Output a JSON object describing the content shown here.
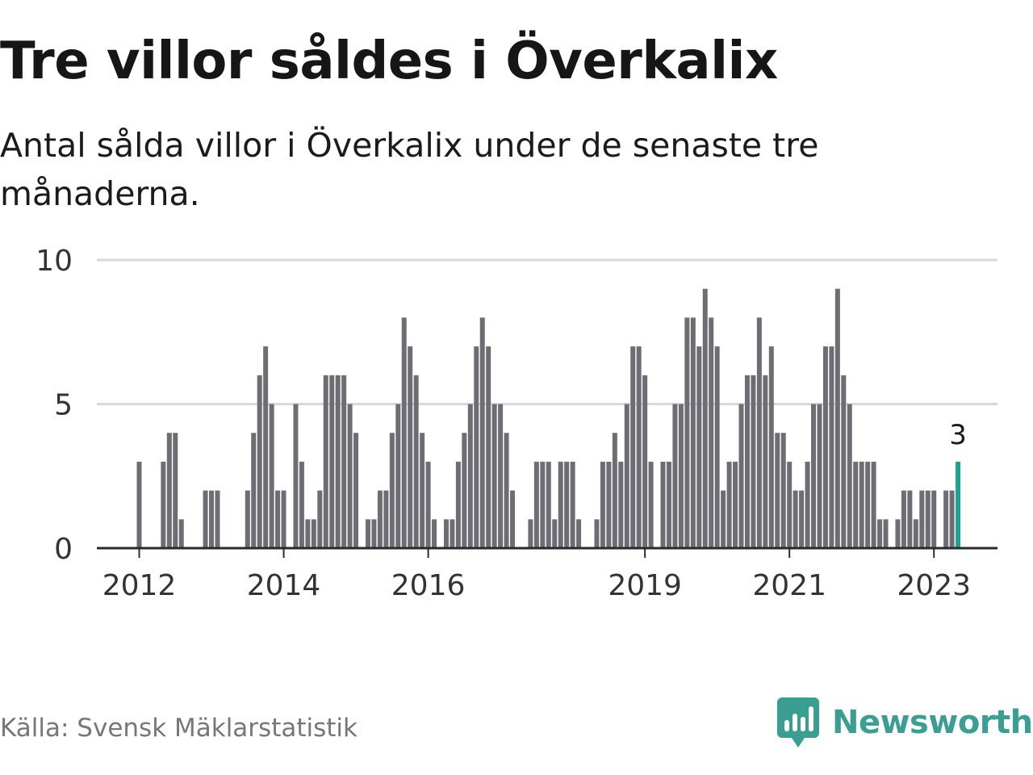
{
  "title": "Tre villor såldes i Överkalix",
  "subtitle": "Antal sålda villor i Överkalix under de senaste tre månaderna.",
  "source": "Källa: Svensk Mäklarstatistik",
  "brand": {
    "name": "Newsworthy",
    "icon": "newsworthy-logo-icon",
    "color": "#3a9e93"
  },
  "chart_data": {
    "type": "bar",
    "title": "Tre villor såldes i Överkalix",
    "subtitle": "Antal sålda villor i Överkalix under de senaste tre månaderna.",
    "xlabel": "",
    "ylabel": "",
    "ylim": [
      0,
      10
    ],
    "yticks": [
      0,
      5,
      10
    ],
    "grid": true,
    "x_start": "2012-01",
    "xticks": [
      {
        "label": "2012",
        "index": 0
      },
      {
        "label": "2014",
        "index": 24
      },
      {
        "label": "2016",
        "index": 48
      },
      {
        "label": "2019",
        "index": 84
      },
      {
        "label": "2021",
        "index": 108
      },
      {
        "label": "2023",
        "index": 132
      }
    ],
    "values": [
      3,
      0,
      0,
      0,
      3,
      4,
      4,
      1,
      0,
      0,
      0,
      2,
      2,
      2,
      0,
      0,
      0,
      0,
      2,
      4,
      6,
      7,
      5,
      2,
      2,
      0,
      5,
      3,
      1,
      1,
      2,
      6,
      6,
      6,
      6,
      5,
      4,
      0,
      1,
      1,
      2,
      2,
      4,
      5,
      8,
      7,
      6,
      4,
      3,
      1,
      0,
      1,
      1,
      3,
      4,
      5,
      7,
      8,
      7,
      5,
      5,
      4,
      2,
      0,
      0,
      1,
      3,
      3,
      3,
      1,
      3,
      3,
      3,
      1,
      0,
      0,
      1,
      3,
      3,
      4,
      3,
      5,
      7,
      7,
      6,
      3,
      0,
      3,
      3,
      5,
      5,
      8,
      8,
      7,
      9,
      8,
      7,
      2,
      3,
      3,
      5,
      6,
      6,
      8,
      6,
      7,
      4,
      4,
      3,
      2,
      2,
      3,
      5,
      5,
      7,
      7,
      9,
      6,
      5,
      3,
      3,
      3,
      3,
      1,
      1,
      0,
      1,
      2,
      2,
      1,
      2,
      2,
      2,
      0,
      2,
      2,
      3
    ],
    "highlight_index": 136,
    "highlight_label": "3",
    "colors": {
      "bar": "#6e6d73",
      "highlight": "#1fa093",
      "grid": "#d9d9d9",
      "axis": "#2b2b2b"
    }
  }
}
